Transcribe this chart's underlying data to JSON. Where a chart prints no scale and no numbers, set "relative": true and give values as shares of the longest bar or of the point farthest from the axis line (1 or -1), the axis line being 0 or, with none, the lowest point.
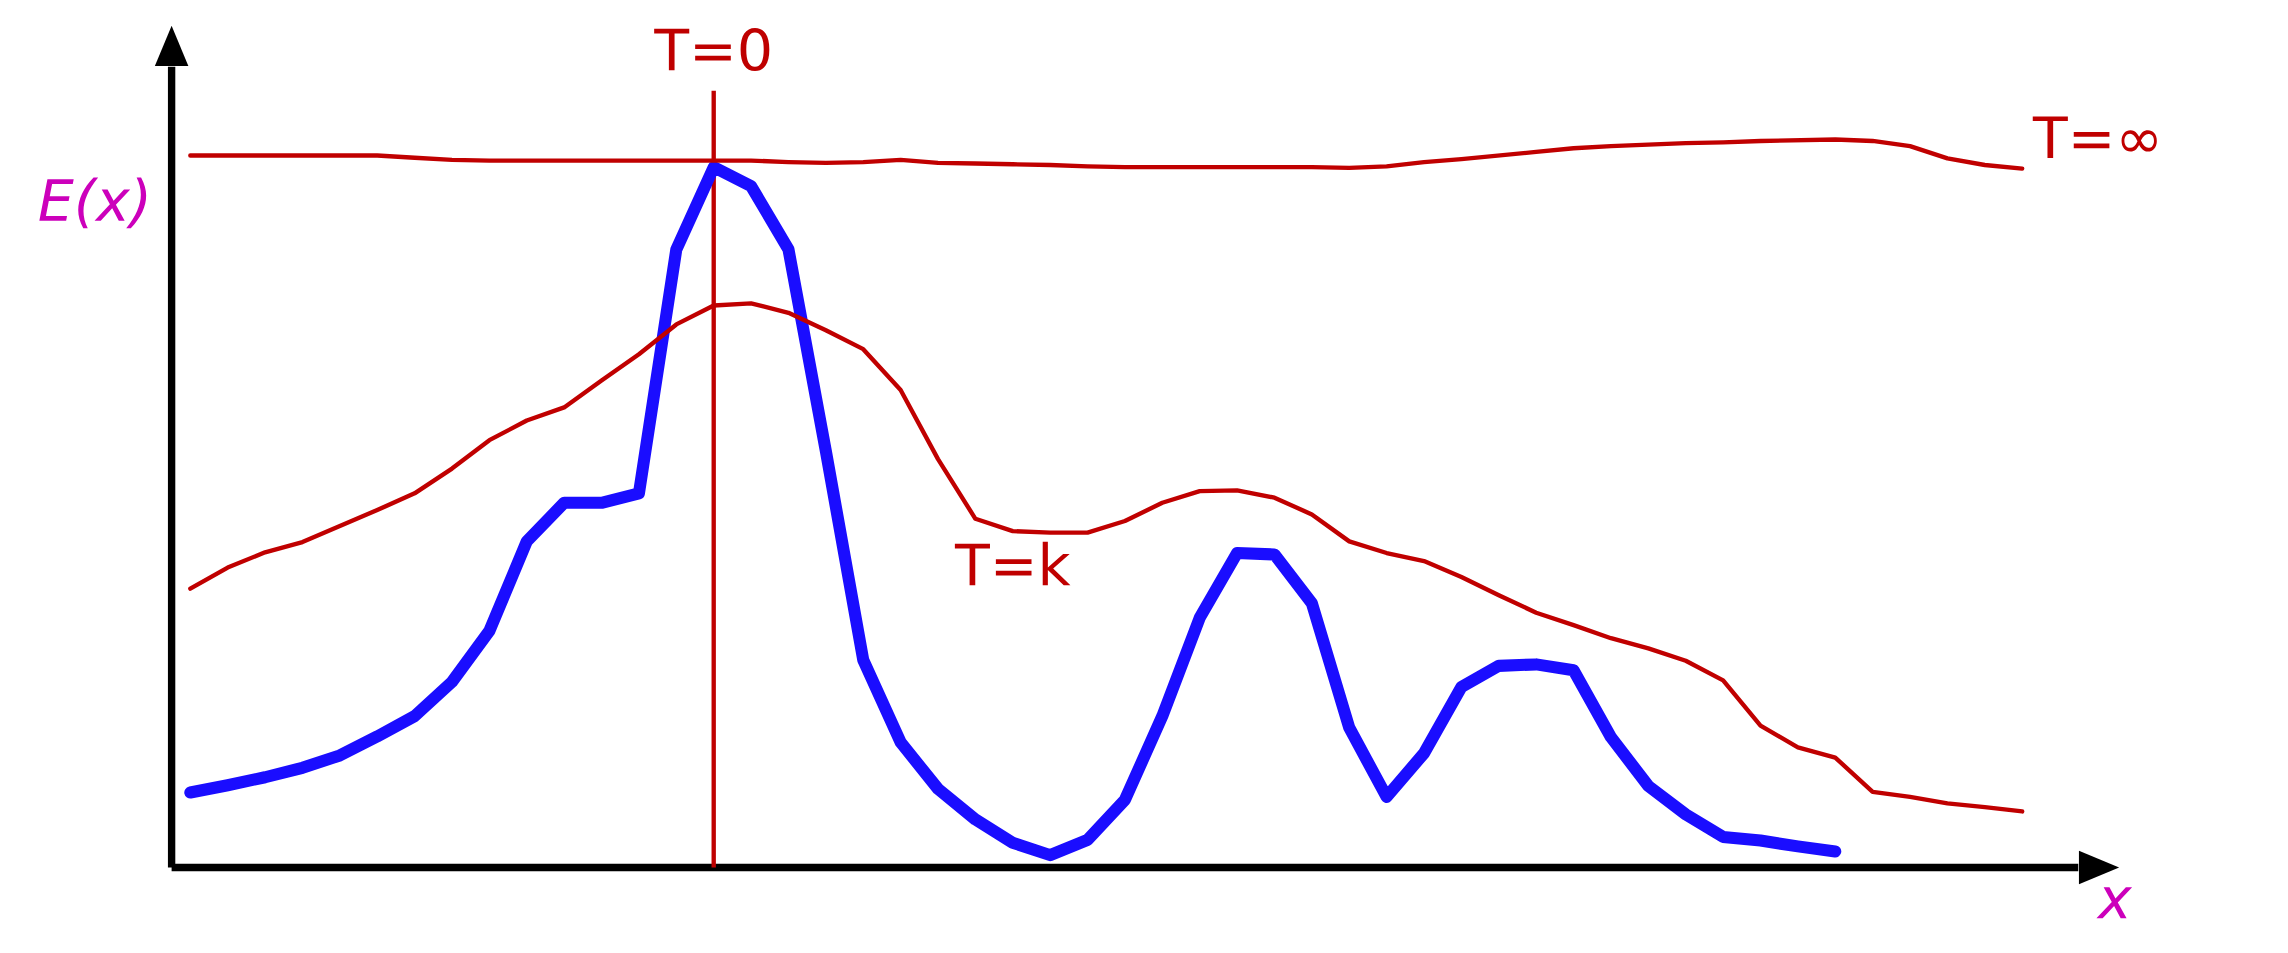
{
  "chart_data": {
    "type": "line",
    "relative": true,
    "xlabel": "x",
    "ylabel": "E(x)",
    "categories": [
      null,
      null,
      null,
      null,
      null,
      null,
      null,
      null,
      null,
      null,
      null,
      null,
      null,
      null,
      null,
      null,
      null,
      null,
      null,
      null,
      null,
      null,
      null,
      null,
      null,
      null,
      null,
      null,
      null,
      null,
      null,
      null,
      null,
      null,
      null,
      null,
      null,
      null,
      null,
      null,
      null,
      null,
      null,
      null,
      null,
      null,
      null,
      null,
      null,
      null,
      null
    ],
    "series": [
      {
        "color": "#1a0dff",
        "values": [
          0.103,
          0.113,
          0.124,
          0.137,
          0.154,
          0.18,
          0.208,
          0.255,
          0.325,
          0.448,
          0.501,
          0.501,
          0.514,
          0.849,
          0.962,
          0.936,
          0.849,
          0.572,
          0.285,
          0.172,
          0.108,
          0.066,
          0.034,
          0.017,
          0.038,
          0.093,
          0.208,
          0.343,
          0.432,
          0.43,
          0.363,
          0.192,
          0.097,
          0.157,
          0.248,
          0.277,
          0.279,
          0.271,
          0.179,
          0.112,
          0.073,
          0.042,
          0.037,
          0.029,
          0.022,
          null,
          null,
          null,
          null,
          null,
          null
        ]
      },
      {
        "name": "T=∞",
        "color": "#c00000",
        "values": [
          0.978,
          0.978,
          0.978,
          0.978,
          0.978,
          0.978,
          0.975,
          0.972,
          0.971,
          0.971,
          0.971,
          0.971,
          0.971,
          0.971,
          0.971,
          0.971,
          0.969,
          0.968,
          0.969,
          0.972,
          0.968,
          0.967,
          0.966,
          0.965,
          0.963,
          0.962,
          0.962,
          0.962,
          0.962,
          0.962,
          0.962,
          0.961,
          0.963,
          0.969,
          0.973,
          0.978,
          0.983,
          0.988,
          0.991,
          0.993,
          0.995,
          0.996,
          0.998,
          0.999,
          1.0,
          0.998,
          0.991,
          0.974,
          0.965,
          0.96,
          null
        ]
      },
      {
        "name": "T=k",
        "color": "#c00000",
        "values": [
          0.383,
          0.412,
          0.433,
          0.447,
          0.469,
          0.491,
          0.514,
          0.548,
          0.587,
          0.614,
          0.632,
          0.669,
          0.705,
          0.746,
          0.772,
          0.775,
          0.762,
          0.738,
          0.712,
          0.656,
          0.561,
          0.479,
          0.462,
          0.46,
          0.46,
          0.476,
          0.501,
          0.517,
          0.518,
          0.508,
          0.485,
          0.448,
          0.432,
          0.421,
          0.399,
          0.374,
          0.35,
          0.333,
          0.315,
          0.301,
          0.284,
          0.257,
          0.195,
          0.165,
          0.151,
          0.104,
          0.097,
          0.088,
          0.083,
          0.077,
          null
        ]
      }
    ],
    "annotations": [
      "T=0"
    ]
  }
}
